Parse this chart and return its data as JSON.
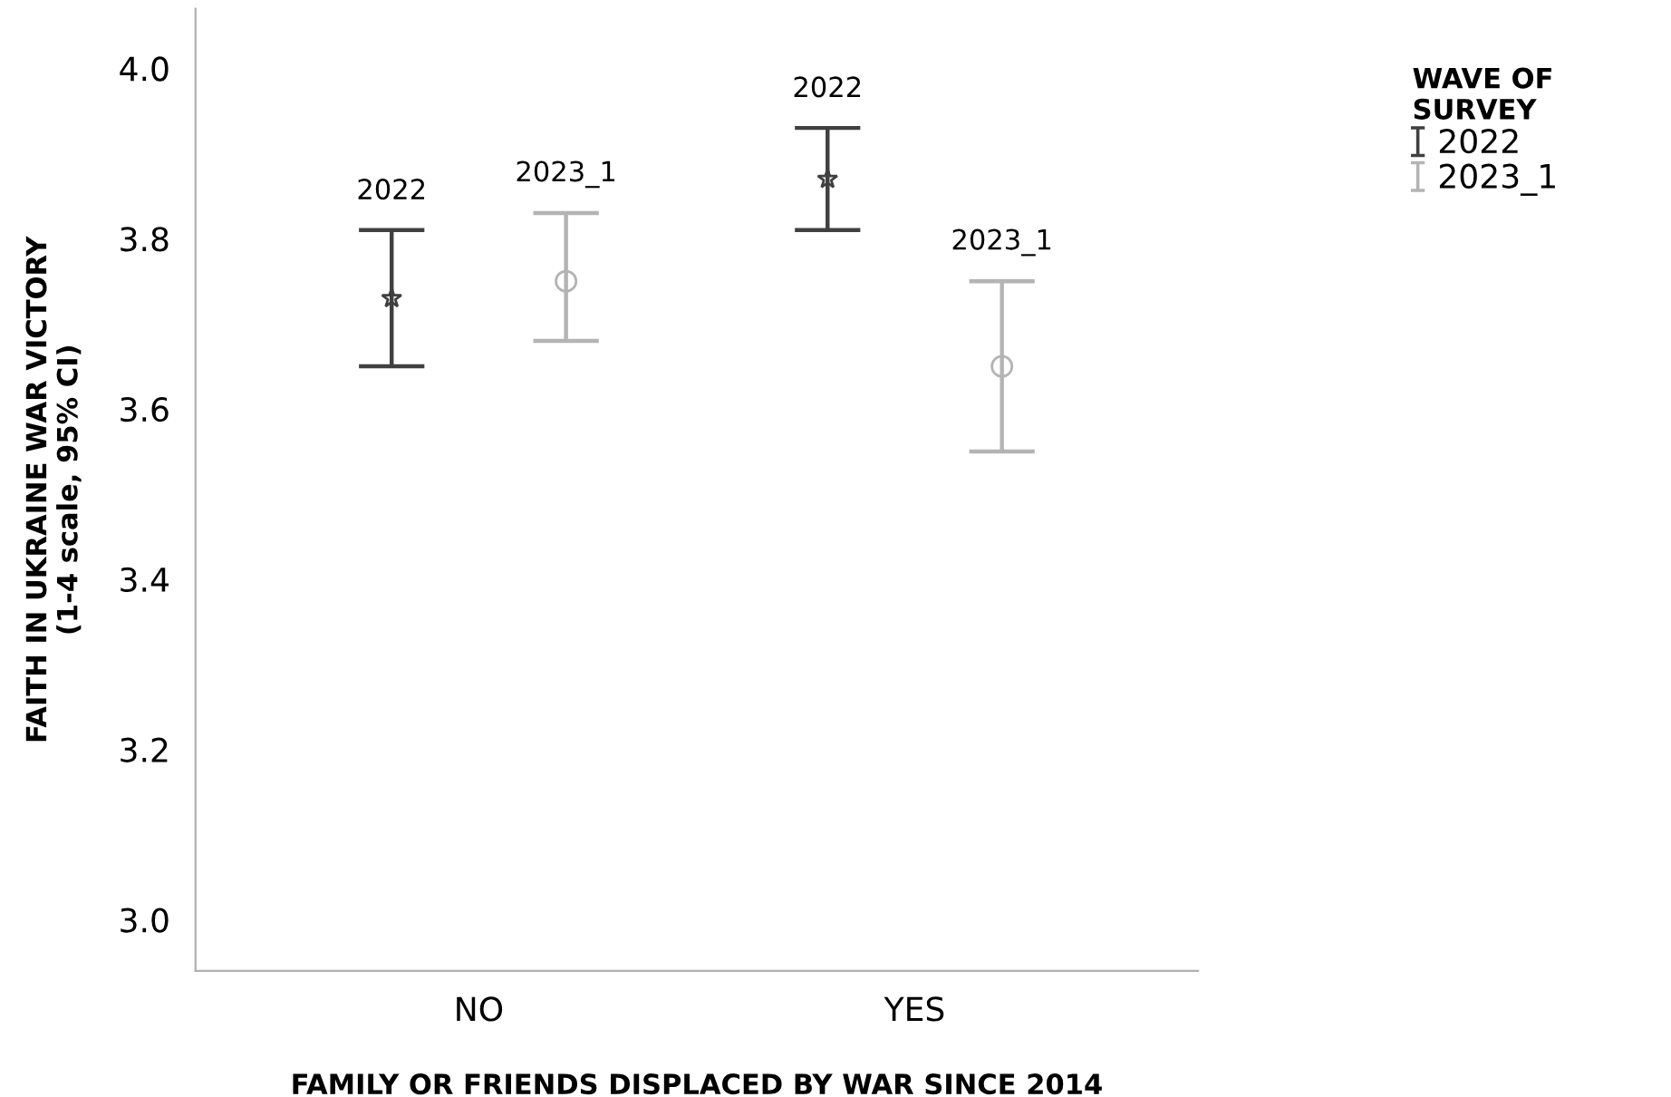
{
  "chart_data": {
    "type": "scatter",
    "categories": [
      "NO",
      "YES"
    ],
    "xlabel": "FAMILY OR FRIENDS DISPLACED BY WAR SINCE 2014",
    "ylabel": "FAITH IN UKRAINE WAR VICTORY\n(1-4 scale, 95% CI)",
    "legend_title": "WAVE OF\nSURVEY",
    "series": [
      {
        "name": "2022",
        "color": "#404040",
        "marker": "star",
        "values": [
          3.73,
          3.87
        ],
        "errors": [
          [
            3.65,
            3.81
          ],
          [
            3.81,
            3.93
          ]
        ]
      },
      {
        "name": "2023_1",
        "color": "#b4b4b4",
        "marker": "circle",
        "values": [
          3.75,
          3.65
        ],
        "errors": [
          [
            3.68,
            3.83
          ],
          [
            3.55,
            3.75
          ]
        ]
      }
    ],
    "ylim": [
      2.94,
      4.07
    ],
    "yticks": [
      {
        "value": 3.0,
        "label": "3.0"
      },
      {
        "value": 3.2,
        "label": "3.2"
      },
      {
        "value": 3.4,
        "label": "3.4"
      },
      {
        "value": 3.6,
        "label": "3.6"
      },
      {
        "value": 3.8,
        "label": "3.8"
      },
      {
        "value": 4.0,
        "label": "4.0"
      }
    ],
    "grid": false,
    "legend": "top right"
  }
}
